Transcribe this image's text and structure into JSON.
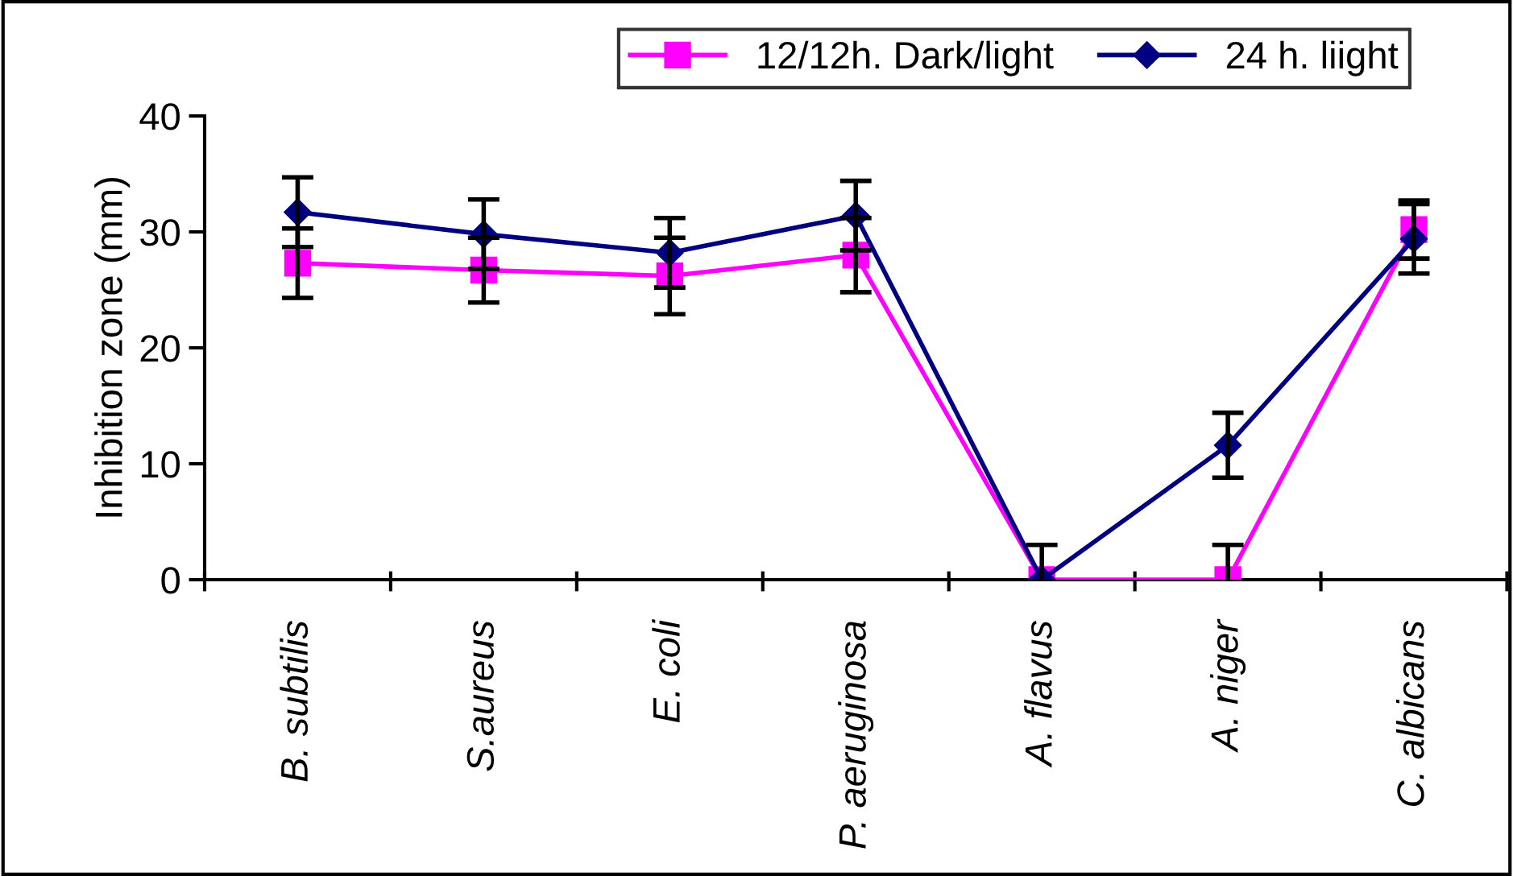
{
  "chart_data": {
    "type": "line",
    "ylabel": "Inhibition zone (mm)",
    "categories": [
      "B. subtilis",
      "S.aureus",
      "E. coli",
      "P. aeruginosa",
      "A. flavus",
      "A. niger",
      "C. albicans"
    ],
    "series": [
      {
        "name": "12/12h. Dark/light",
        "color": "#ff00ff",
        "marker": "square",
        "values": [
          27.3,
          26.7,
          26.2,
          28.0,
          0,
          0,
          30.2
        ],
        "errors": [
          3,
          2.8,
          3.3,
          3.2,
          3,
          3,
          2.5
        ]
      },
      {
        "name": "24 h. liight",
        "color": "#000080",
        "marker": "diamond",
        "values": [
          31.7,
          29.8,
          28.2,
          31.4,
          0,
          11.6,
          29.4
        ],
        "errors": [
          3,
          3,
          3,
          3,
          null,
          2.8,
          3
        ]
      }
    ],
    "ylim": [
      0,
      40
    ],
    "yticks": [
      0,
      10,
      20,
      30,
      40
    ],
    "grid": false,
    "legend": "top right",
    "line_style": "solid"
  }
}
